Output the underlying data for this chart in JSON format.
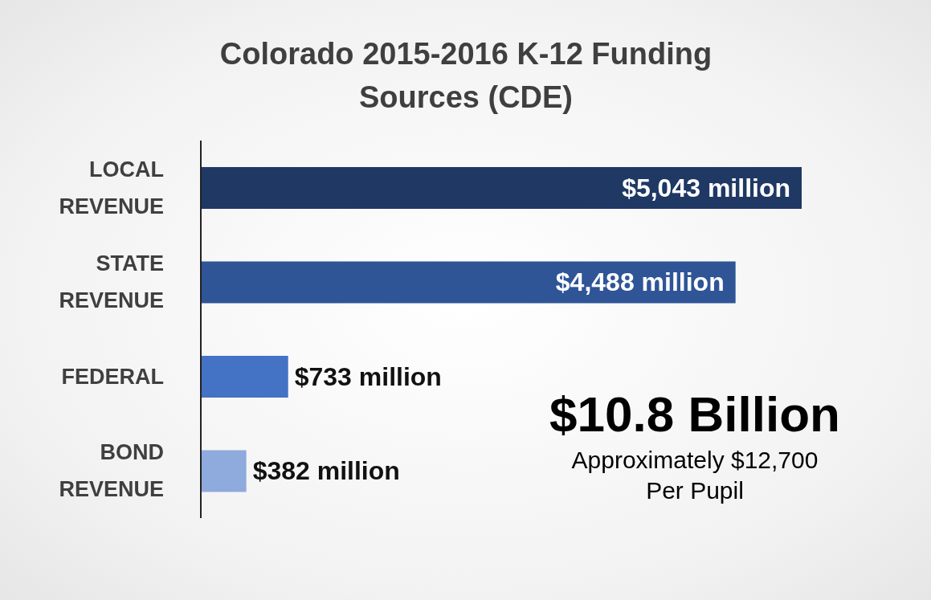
{
  "chart_data": {
    "type": "bar",
    "orientation": "horizontal",
    "title": "Colorado 2015-2016 K-12 Funding Sources (CDE)",
    "categories": [
      "LOCAL REVENUE",
      "STATE REVENUE",
      "FEDERAL",
      "BOND REVENUE"
    ],
    "values": [
      5043,
      4488,
      733,
      382
    ],
    "colors": [
      "#1f3864",
      "#2f5597",
      "#4472c4",
      "#8faadc"
    ],
    "value_labels": [
      "$5,043 million",
      "$4,488 million",
      "$733 million",
      "$382 million"
    ],
    "tick_labels": "y",
    "annotations": [
      "$10.8 Billion",
      "Approximately $12,700 Per Pupil"
    ]
  }
}
